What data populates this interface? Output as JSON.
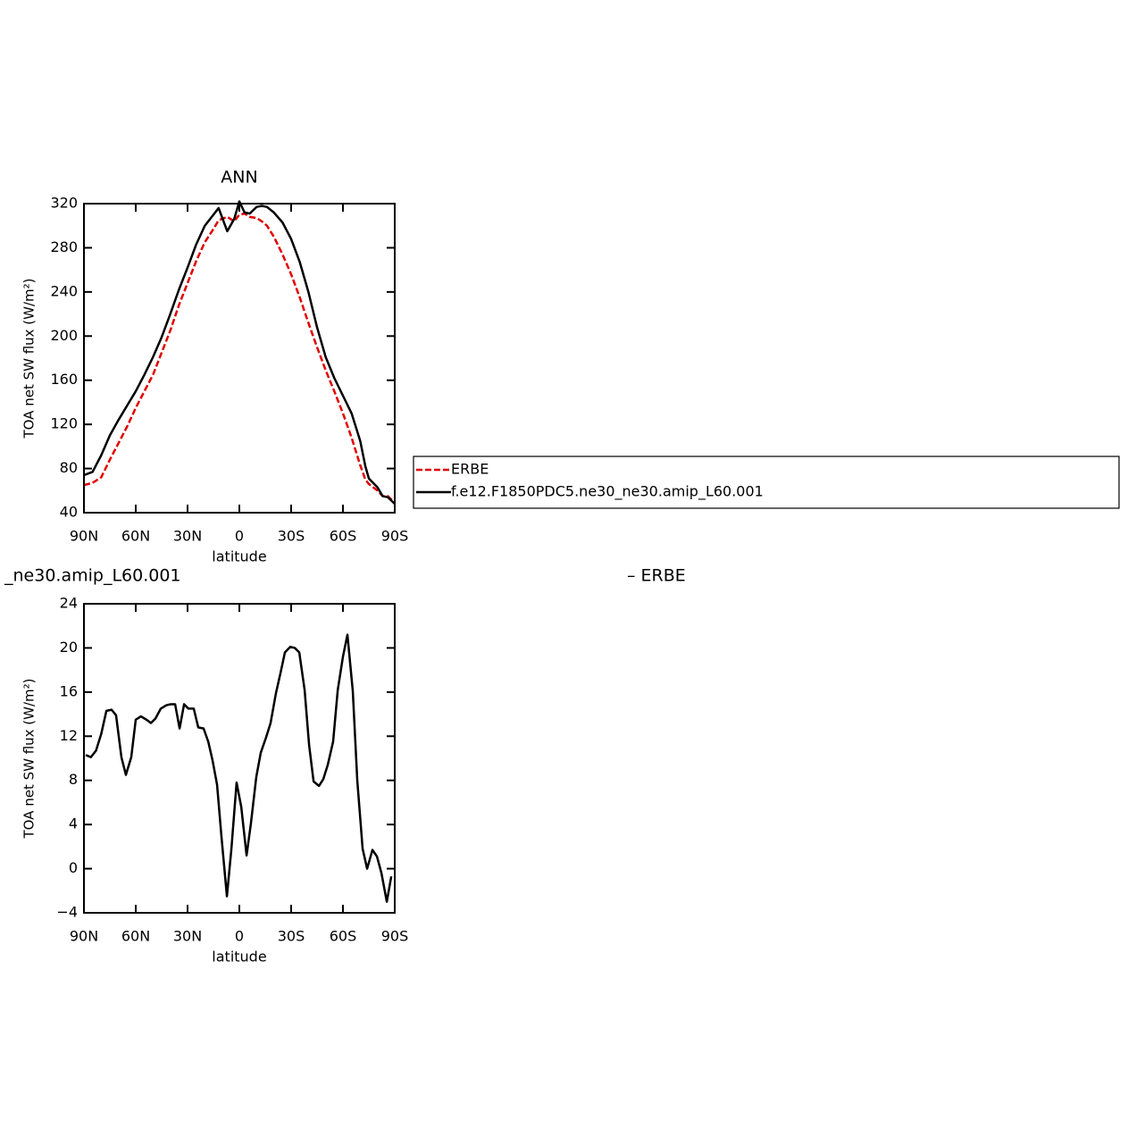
{
  "chart_data": [
    {
      "type": "line",
      "title": "ANN",
      "xlabel": "latitude",
      "ylabel": "TOA net SW flux (W/m²)",
      "x": [
        90,
        85,
        80,
        75,
        70,
        65,
        60,
        55,
        50,
        45,
        40,
        35,
        30,
        25,
        20,
        15,
        12,
        7,
        3,
        0,
        -3,
        -6,
        -10,
        -13,
        -16,
        -20,
        -25,
        -30,
        -35,
        -40,
        -45,
        -50,
        -55,
        -60,
        -65,
        -70,
        -73,
        -75,
        -80,
        -83,
        -86,
        -88,
        -90
      ],
      "series": [
        {
          "name": "ERBE",
          "color": "#e00000",
          "style": "dashed",
          "values": [
            65,
            67,
            72,
            88,
            103,
            118,
            135,
            150,
            165,
            185,
            205,
            228,
            248,
            268,
            285,
            297,
            305,
            308,
            304,
            310,
            311,
            308,
            307,
            304,
            300,
            290,
            274,
            256,
            235,
            212,
            190,
            169,
            150,
            130,
            108,
            83,
            70,
            66,
            60,
            55,
            55,
            52,
            48
          ]
        },
        {
          "name": "f.e12.F1850PDC5.ne30_ne30.amip_L60.001",
          "color": "#000000",
          "style": "solid",
          "values": [
            74,
            77,
            92,
            110,
            124,
            137,
            150,
            165,
            181,
            199,
            220,
            242,
            262,
            283,
            300,
            310,
            316,
            295,
            306,
            322,
            312,
            311,
            317,
            318,
            317,
            312,
            303,
            288,
            267,
            240,
            208,
            181,
            162,
            146,
            130,
            105,
            82,
            71,
            63,
            55,
            54,
            51,
            48
          ]
        }
      ],
      "xlim": [
        90,
        -90
      ],
      "xticks": [
        {
          "value": 90,
          "label": "90N"
        },
        {
          "value": 60,
          "label": "60N"
        },
        {
          "value": 30,
          "label": "30N"
        },
        0,
        {
          "value": -30,
          "label": "30S"
        },
        {
          "value": -60,
          "label": "60S"
        },
        {
          "value": -90,
          "label": "90S"
        }
      ],
      "ylim": [
        40,
        320
      ],
      "yticks": [
        40,
        80,
        120,
        160,
        200,
        240,
        280,
        320
      ],
      "legend": "right"
    },
    {
      "type": "line",
      "left_title": "_ne30.amip_L60.001",
      "right_title": "– ERBE",
      "xlabel": "latitude",
      "ylabel": "TOA net SW flux (W/m²)",
      "x": [
        89,
        86,
        83,
        80,
        77,
        74,
        71.4,
        68.3,
        65.7,
        62.6,
        60,
        57,
        53.8,
        51.2,
        48.6,
        45.5,
        42.4,
        39.8,
        37.2,
        34.6,
        32,
        29.5,
        26.4,
        23.8,
        20.7,
        18,
        15.5,
        12.9,
        10.3,
        7.2,
        4.6,
        1.6,
        -1.1,
        -4.2,
        -6.7,
        -9.8,
        -12.4,
        -15.5,
        -18.1,
        -21.2,
        -23.8,
        -26.4,
        -29.5,
        -32.1,
        -34.7,
        -37.8,
        -40.4,
        -43,
        -46.1,
        -48.6,
        -51.2,
        -54.3,
        -57,
        -60,
        -62.6,
        -65.7,
        -68.3,
        -71.4,
        -74,
        -77.1,
        -79.7,
        -82.3,
        -85.4,
        -88
      ],
      "series": [
        {
          "color": "#000000",
          "style": "solid",
          "values": [
            10.3,
            10.1,
            10.7,
            12.2,
            14.3,
            14.4,
            13.9,
            10.1,
            8.5,
            10.1,
            13.5,
            13.8,
            13.5,
            13.2,
            13.6,
            14.5,
            14.8,
            14.9,
            14.9,
            12.7,
            14.9,
            14.5,
            14.5,
            12.8,
            12.7,
            11.5,
            9.8,
            7.6,
            2.8,
            -2.5,
            1.8,
            7.8,
            5.6,
            1.2,
            4.1,
            8.3,
            10.5,
            11.9,
            13.2,
            15.9,
            17.7,
            19.6,
            20.1,
            20.0,
            19.6,
            16.2,
            11.2,
            7.9,
            7.5,
            8.1,
            9.4,
            11.5,
            16.2,
            19.2,
            21.2,
            16.1,
            8.0,
            1.8,
            0.0,
            1.7,
            1.1,
            -0.4,
            -3.0,
            -0.7
          ]
        }
      ],
      "xlim": [
        90,
        -90
      ],
      "xticks": [
        {
          "value": 90,
          "label": "90N"
        },
        {
          "value": 60,
          "label": "60N"
        },
        {
          "value": 30,
          "label": "30N"
        },
        0,
        {
          "value": -30,
          "label": "30S"
        },
        {
          "value": -60,
          "label": "60S"
        },
        {
          "value": -90,
          "label": "90S"
        }
      ],
      "ylim": [
        -4,
        24
      ],
      "yticks": [
        {
          "value": -4,
          "label": "−4"
        },
        0,
        4,
        8,
        12,
        16,
        20,
        24
      ]
    }
  ]
}
